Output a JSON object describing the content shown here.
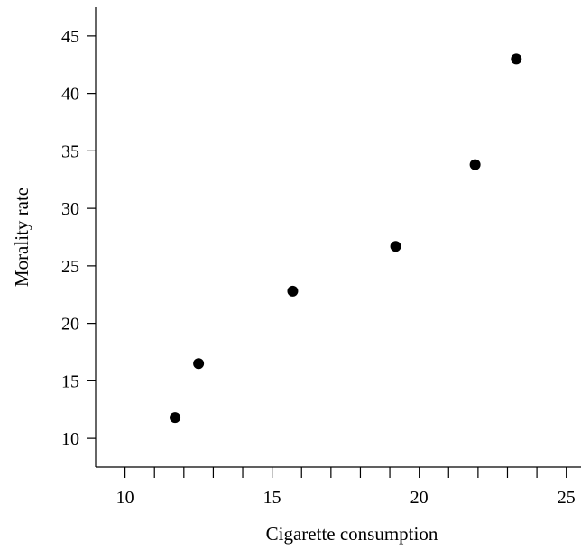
{
  "chart_data": {
    "type": "scatter",
    "title": "",
    "xlabel": "Cigarette consumption",
    "ylabel": "Morality rate",
    "xlim": [
      9,
      25.5
    ],
    "ylim": [
      7.5,
      47.5
    ],
    "x_ticks": [
      10,
      15,
      20,
      25
    ],
    "x_minor_ticks": [
      11,
      12,
      13,
      14,
      16,
      17,
      18,
      19,
      21,
      22,
      23,
      24
    ],
    "y_ticks": [
      10,
      15,
      20,
      25,
      30,
      35,
      40,
      45
    ],
    "x_tick_labels": [
      "10",
      "15",
      "20",
      "25"
    ],
    "y_tick_labels": [
      "10",
      "15",
      "20",
      "25",
      "30",
      "35",
      "40",
      "45"
    ],
    "grid": false,
    "series": [
      {
        "marker_color": "#000000",
        "points": [
          {
            "x": 11.7,
            "y": 11.8
          },
          {
            "x": 12.5,
            "y": 16.5
          },
          {
            "x": 15.7,
            "y": 22.8
          },
          {
            "x": 19.2,
            "y": 26.7
          },
          {
            "x": 21.9,
            "y": 33.8
          },
          {
            "x": 23.3,
            "y": 43.0
          }
        ]
      }
    ]
  }
}
